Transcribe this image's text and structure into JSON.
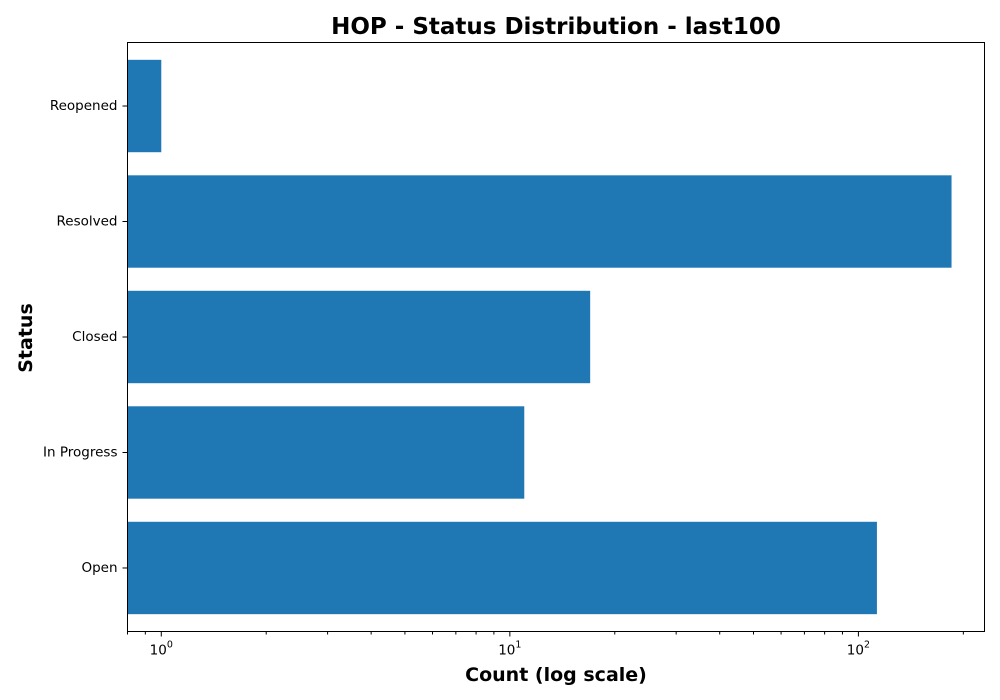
{
  "chart_data": {
    "type": "bar",
    "orientation": "horizontal",
    "title": "HOP - Status Distribution - last100",
    "xlabel": "Count (log scale)",
    "ylabel": "Status",
    "xscale": "log",
    "xlim": [
      0.8,
      230
    ],
    "categories": [
      "Open",
      "In Progress",
      "Closed",
      "Resolved",
      "Reopened"
    ],
    "values": [
      113,
      11,
      17,
      185,
      1
    ],
    "x_major_ticks": [
      {
        "base": "10",
        "exponent": "0",
        "value": 1
      },
      {
        "base": "10",
        "exponent": "1",
        "value": 10
      },
      {
        "base": "10",
        "exponent": "2",
        "value": 100
      }
    ],
    "grid": false,
    "legend": "none",
    "bar_color": "#1f77b4"
  }
}
